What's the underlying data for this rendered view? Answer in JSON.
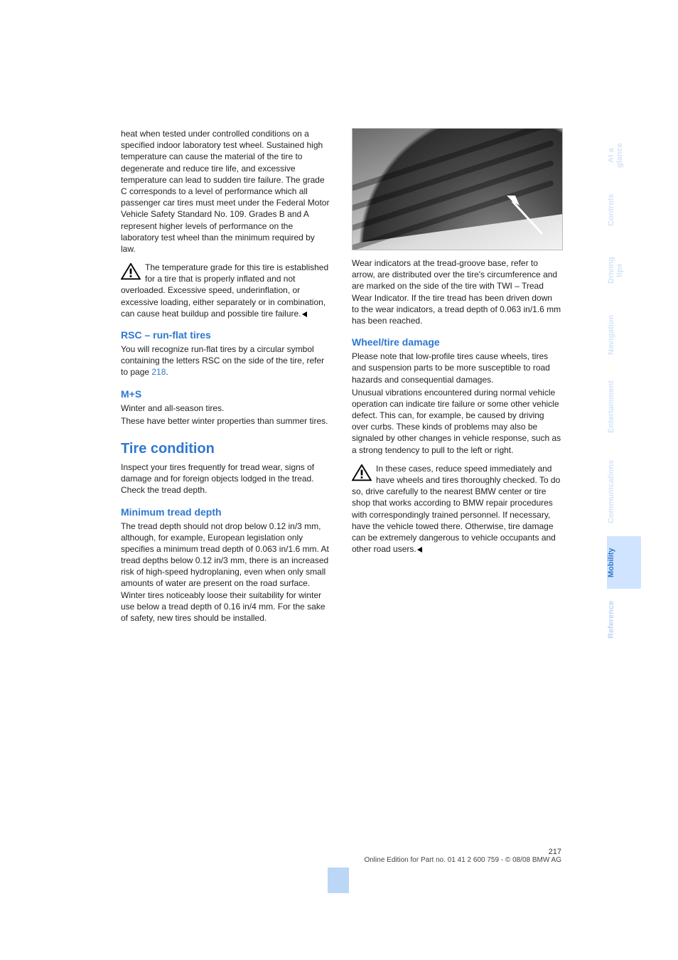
{
  "tabs": {
    "t0": "At a glance",
    "t1": "Controls",
    "t2": "Driving tips",
    "t3": "Navigation",
    "t4": "Entertainment",
    "t5": "Communications",
    "t6": "Mobility",
    "t7": "Reference",
    "heights": {
      "t0": 86,
      "t1": 72,
      "t2": 92,
      "t3": 90,
      "t4": 112,
      "t5": 126,
      "t6": 74,
      "t7": 86
    }
  },
  "left": {
    "p1": "heat when tested under controlled conditions on a specified indoor laboratory test wheel. Sustained high temperature can cause the material of the tire to degenerate and reduce tire life, and excessive temperature can lead to sudden tire failure. The grade C corresponds to a level of performance which all passenger car tires must meet under the Federal Motor Vehicle Safety Standard No. 109. Grades B and A represent higher levels of performance on the laboratory test wheel than the minimum required by law.",
    "warn1": "The temperature grade for this tire is established for a tire that is properly inflated and not overloaded. Excessive speed, underinflation, or excessive loading, either separately or in combination, can cause heat buildup and possible tire failure.",
    "h_rsc": "RSC – run-flat tires",
    "p_rsc_a": "You will recognize run-flat tires by a circular symbol containing the letters RSC on the side of the tire, refer to page ",
    "p_rsc_link": "218",
    "p_rsc_b": ".",
    "h_ms": "M+S",
    "p_ms1": "Winter and all-season tires.",
    "p_ms2": "These have better winter properties than summer tires.",
    "h_tc": "Tire condition",
    "p_tc": "Inspect your tires frequently for tread wear, signs of damage and for foreign objects lodged in the tread. Check the tread depth.",
    "h_min": "Minimum tread depth",
    "p_min": "The tread depth should not drop below 0.12 in/3 mm, although, for example, European legislation only specifies a minimum tread depth of 0.063 in/1.6 mm. At tread depths below 0.12 in/3 mm, there is an increased risk of high-speed hydroplaning, even when only small amounts of water are present on the road surface.\nWinter tires noticeably loose their suitability for winter use below a tread depth of 0.16 in/4 mm. For the sake of safety, new tires should be installed."
  },
  "right": {
    "p1": "Wear indicators at the tread-groove base, refer to arrow, are distributed over the tire's circumference and are marked on the side of the tire with TWI – Tread Wear Indicator. If the tire tread has been driven down to the wear indicators, a tread depth of 0.063 in/1.6 mm has been reached.",
    "h_dmg": "Wheel/tire damage",
    "p_dmg1": "Please note that low-profile tires cause wheels, tires and suspension parts to be more susceptible to road hazards and consequential damages.",
    "p_dmg2": "Unusual vibrations encountered during normal vehicle operation can indicate tire failure or some other vehicle defect. This can, for example, be caused by driving over curbs. These kinds of problems may also be signaled by other changes in vehicle response, such as a strong tendency to pull to the left or right.",
    "warn2": "In these cases, reduce speed immediately and have wheels and tires thoroughly checked. To do so, drive carefully to the nearest BMW center or tire shop that works according to BMW repair procedures with correspondingly trained personnel. If necessary, have the vehicle towed there. Otherwise, tire damage can be extremely dangerous to vehicle occupants and other road users."
  },
  "footer": {
    "page": "217",
    "line": "Online Edition for Part no. 01 41 2 600 759 - © 08/08 BMW AG"
  },
  "colors": {
    "link": "#2f77d0",
    "tab_active_bg": "#d1e4ff",
    "tab_faded": "#d3e4f9"
  }
}
